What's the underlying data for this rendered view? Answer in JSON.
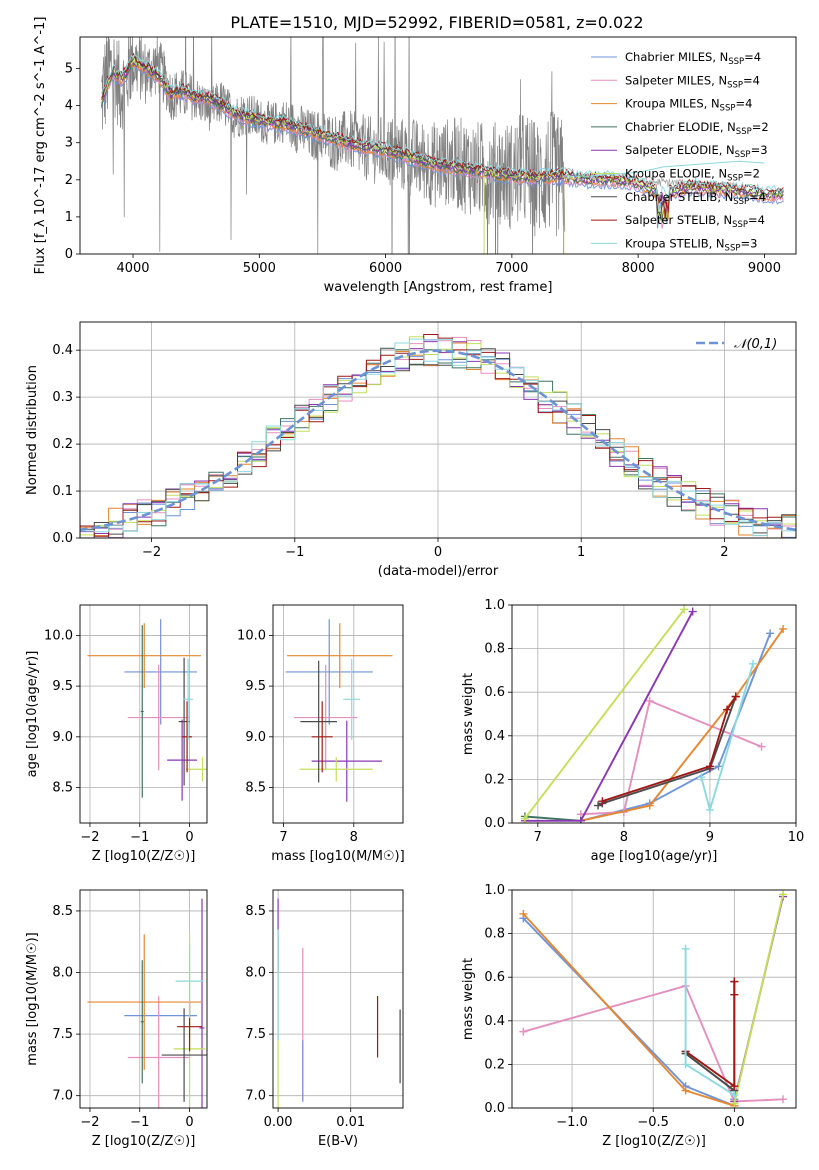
{
  "figure_title": "PLATE=1510, MJD=52992, FIBERID=0581, z=0.022",
  "model_colors": [
    "#6f94d8",
    "#e58fbf",
    "#e6862f",
    "#3e7560",
    "#8b37b5",
    "#c4df5a",
    "#4b4b4b",
    "#a01815",
    "#8bd9de"
  ],
  "chart_data": [
    {
      "id": "spectrum",
      "type": "line",
      "title": "PLATE=1510, MJD=52992, FIBERID=0581, z=0.022",
      "xlabel": "wavelength [Angstrom, rest frame]",
      "ylabel": "Flux [f_λ 10^-17 erg cm^-2 s^-1 A^-1]",
      "xlim": [
        3580,
        9250
      ],
      "ylim": [
        0,
        5.85
      ],
      "xticks": [
        4000,
        5000,
        6000,
        7000,
        8000,
        9000
      ],
      "yticks": [
        0,
        1,
        2,
        3,
        4,
        5
      ],
      "grid": false,
      "legend_position": "top-right",
      "legend": [
        {
          "prefix": "Chabrier MILES, N",
          "sub": "SSP",
          "suffix": "=4",
          "color": "#6f94d8"
        },
        {
          "prefix": "Salpeter MILES, N",
          "sub": "SSP",
          "suffix": "=4",
          "color": "#e58fbf"
        },
        {
          "prefix": "Kroupa MILES, N",
          "sub": "SSP",
          "suffix": "=4",
          "color": "#e6862f"
        },
        {
          "prefix": "Chabrier ELODIE, N",
          "sub": "SSP",
          "suffix": "=2",
          "color": "#3e7560"
        },
        {
          "prefix": "Salpeter ELODIE, N",
          "sub": "SSP",
          "suffix": "=3",
          "color": "#8b37b5"
        },
        {
          "prefix": "Kroupa ELODIE, N",
          "sub": "SSP",
          "suffix": "=2",
          "color": "#c4df5a"
        },
        {
          "prefix": "Chabrier STELIB, N",
          "sub": "SSP",
          "suffix": "=4",
          "color": "#4b4b4b"
        },
        {
          "prefix": "Salpeter STELIB, N",
          "sub": "SSP",
          "suffix": "=4",
          "color": "#a01815"
        },
        {
          "prefix": "Kroupa STELIB, N",
          "sub": "SSP",
          "suffix": "=3",
          "color": "#8bd9de"
        }
      ],
      "data_series": {
        "name": "data",
        "color": "#808080",
        "x": [
          3750,
          3800,
          3850,
          3900,
          3950,
          4000,
          4100,
          4200,
          4300,
          4400,
          4500,
          4600,
          4700,
          4800,
          4900,
          5000,
          5100,
          5200,
          5300,
          5400,
          5500,
          5600,
          5700,
          5800,
          5900,
          6000,
          6100,
          6200,
          6300,
          6400,
          6500,
          6600,
          6700,
          6800,
          6900,
          7000,
          7100,
          7200,
          7300,
          7400
        ],
        "y": [
          4.2,
          4.9,
          5.0,
          4.4,
          4.7,
          5.2,
          4.9,
          5.1,
          4.3,
          4.3,
          4.2,
          3.9,
          4.1,
          3.7,
          3.8,
          3.6,
          3.5,
          3.6,
          3.4,
          3.2,
          3.2,
          3.0,
          3.1,
          2.9,
          2.8,
          2.8,
          2.7,
          2.6,
          2.5,
          2.4,
          2.5,
          2.4,
          2.3,
          2.2,
          2.2,
          2.1,
          2.3,
          2.0,
          2.2,
          2.0
        ],
        "scatter_amplitude": [
          1.5,
          1.4,
          1.3,
          1.2,
          1.1,
          1.0,
          0.9,
          0.8,
          0.7,
          0.7,
          0.6,
          0.6,
          0.6,
          0.6,
          0.6,
          0.6,
          0.6,
          0.6,
          0.7,
          0.7,
          0.7,
          0.8,
          0.8,
          0.9,
          0.9,
          1.0,
          1.0,
          1.1,
          1.1,
          1.2,
          1.2,
          1.3,
          1.3,
          1.4,
          1.4,
          1.5,
          1.6,
          1.6,
          1.7,
          1.7
        ]
      },
      "model_series": {
        "name": "Salpeter STELIB",
        "color": "#a01815",
        "x": [
          3750,
          3800,
          3850,
          3900,
          3950,
          4000,
          4050,
          4100,
          4200,
          4300,
          4400,
          4500,
          4600,
          4700,
          4800,
          4900,
          5000,
          5200,
          5400,
          5600,
          5800,
          6000,
          6200,
          6400,
          6600,
          6800,
          7000,
          7200,
          7400,
          7600,
          7800,
          8000,
          8200,
          8400,
          8600,
          8800,
          9000
        ],
        "y": [
          4.1,
          4.6,
          4.9,
          4.7,
          4.9,
          5.2,
          5.1,
          5.0,
          4.8,
          4.3,
          4.4,
          4.2,
          4.2,
          4.0,
          3.8,
          3.7,
          3.6,
          3.5,
          3.3,
          3.1,
          2.9,
          2.8,
          2.6,
          2.4,
          2.3,
          2.2,
          2.1,
          2.05,
          2.1,
          2.0,
          2.0,
          1.9,
          1.6,
          1.8,
          1.75,
          1.7,
          1.6
        ]
      },
      "kroupa_stelib_red": {
        "name": "Kroupa STELIB",
        "color": "#8bd9de",
        "x": [
          7400,
          7600,
          7800,
          8000,
          8200,
          8400,
          8600,
          8800,
          9000
        ],
        "y": [
          2.1,
          2.1,
          2.15,
          2.2,
          2.35,
          2.4,
          2.45,
          2.5,
          2.45
        ]
      }
    },
    {
      "id": "residuals",
      "type": "histogram",
      "xlabel": "(data-model)/error",
      "ylabel": "Normed distribution",
      "xlim": [
        -2.5,
        2.5
      ],
      "ylim": [
        0,
        0.46
      ],
      "xticks": [
        -2,
        -1,
        0,
        1,
        2
      ],
      "yticks": [
        0.0,
        0.1,
        0.2,
        0.3,
        0.4
      ],
      "grid": true,
      "legend_position": "top-right",
      "reference_curve": {
        "name": "𝒩(0,1)",
        "color": "#6b93d6",
        "style": "dashed"
      },
      "bin_width": 0.1
    },
    {
      "id": "z-vs-age",
      "type": "errorbar",
      "xlabel": "Z [log10(Z/Z☉)]",
      "ylabel": "age  [log10(age/yr)]",
      "xlim": [
        -2.2,
        0.35
      ],
      "ylim": [
        8.15,
        10.3
      ],
      "xticks": [
        -2,
        -1,
        0
      ],
      "yticks": [
        8.5,
        9.0,
        9.5,
        10.0
      ],
      "grid": true,
      "points": [
        {
          "x": -0.58,
          "y": 9.64,
          "xerr": 0.73,
          "yerr": 0.52,
          "color": "#6f94d8"
        },
        {
          "x": -0.62,
          "y": 9.19,
          "xerr": 0.62,
          "yerr": 0.52,
          "color": "#e58fbf"
        },
        {
          "x": -0.91,
          "y": 9.8,
          "xerr": 1.14,
          "yerr": 0.32,
          "color": "#e6862f"
        },
        {
          "x": -0.15,
          "y": 8.77,
          "xerr": 0.3,
          "yerr": 0.4,
          "color": "#8b37b5"
        },
        {
          "x": 0.26,
          "y": 8.68,
          "xerr": 0.33,
          "yerr": 0.12,
          "color": "#c4df5a"
        },
        {
          "x": -0.11,
          "y": 9.15,
          "xerr": 0.11,
          "yerr": 0.63,
          "color": "#4b4b4b"
        },
        {
          "x": -0.05,
          "y": 9.0,
          "xerr": 0.1,
          "yerr": 0.35,
          "color": "#a01815"
        },
        {
          "x": -0.03,
          "y": 9.37,
          "xerr": 0.1,
          "yerr": 0.4,
          "color": "#8bd9de"
        },
        {
          "x": -0.95,
          "y": 9.25,
          "xerr": 0.03,
          "yerr": 0.85,
          "color": "#3e7560"
        }
      ]
    },
    {
      "id": "mass-vs-age",
      "type": "errorbar",
      "xlabel": "mass [log10(M/M☉)]",
      "ylabel": "",
      "xlim": [
        6.85,
        8.7
      ],
      "ylim": [
        8.15,
        10.3
      ],
      "xticks": [
        7,
        8
      ],
      "yticks": [
        8.5,
        9.0,
        9.5,
        10.0
      ],
      "grid": true,
      "points": [
        {
          "x": 7.65,
          "y": 9.64,
          "xerr": 0.62,
          "yerr": 0.52,
          "color": "#6f94d8"
        },
        {
          "x": 7.6,
          "y": 9.19,
          "xerr": 0.45,
          "yerr": 0.52,
          "color": "#e58fbf"
        },
        {
          "x": 7.8,
          "y": 9.8,
          "xerr": 0.75,
          "yerr": 0.32,
          "color": "#e6862f"
        },
        {
          "x": 7.9,
          "y": 8.76,
          "xerr": 0.5,
          "yerr": 0.4,
          "color": "#8b37b5"
        },
        {
          "x": 7.75,
          "y": 8.68,
          "xerr": 0.52,
          "yerr": 0.12,
          "color": "#c4df5a"
        },
        {
          "x": 7.5,
          "y": 9.15,
          "xerr": 0.26,
          "yerr": 0.6,
          "color": "#4b4b4b"
        },
        {
          "x": 7.55,
          "y": 9.0,
          "xerr": 0.15,
          "yerr": 0.35,
          "color": "#a01815"
        },
        {
          "x": 7.97,
          "y": 9.37,
          "xerr": 0.12,
          "yerr": 0.4,
          "color": "#8bd9de"
        }
      ]
    },
    {
      "id": "age-vs-massweight",
      "type": "line-markers",
      "xlabel": "age  [log10(age/yr)]",
      "ylabel": "mass weight",
      "xlim": [
        6.7,
        10.0
      ],
      "ylim": [
        0,
        1.0
      ],
      "xticks": [
        7,
        8,
        9,
        10
      ],
      "yticks": [
        0.0,
        0.2,
        0.4,
        0.6,
        0.8,
        1.0
      ],
      "grid": true,
      "series": [
        {
          "color": "#6f94d8",
          "x": [
            7.5,
            8.3,
            9.1,
            9.7
          ],
          "y": [
            0.01,
            0.09,
            0.26,
            0.87
          ]
        },
        {
          "color": "#e58fbf",
          "x": [
            7.5,
            8.0,
            8.3,
            9.6
          ],
          "y": [
            0.04,
            0.05,
            0.56,
            0.35
          ]
        },
        {
          "color": "#e6862f",
          "x": [
            7.5,
            8.3,
            9.3,
            9.85
          ],
          "y": [
            0.01,
            0.08,
            0.58,
            0.89
          ]
        },
        {
          "color": "#3e7560",
          "x": [
            6.85,
            7.5
          ],
          "y": [
            0.03,
            0.01
          ]
        },
        {
          "color": "#8b37b5",
          "x": [
            6.85,
            7.5,
            8.8
          ],
          "y": [
            0.01,
            0.01,
            0.97
          ]
        },
        {
          "color": "#c4df5a",
          "x": [
            6.85,
            8.7
          ],
          "y": [
            0.02,
            0.98
          ]
        },
        {
          "color": "#4b4b4b",
          "x": [
            7.7,
            7.75,
            9.0,
            9.3
          ],
          "y": [
            0.08,
            0.09,
            0.25,
            0.58
          ]
        },
        {
          "color": "#a01815",
          "x": [
            7.75,
            9.0,
            9.2,
            9.3
          ],
          "y": [
            0.1,
            0.26,
            0.52,
            0.58
          ]
        },
        {
          "color": "#8bd9de",
          "x": [
            8.9,
            9.0,
            9.5
          ],
          "y": [
            0.21,
            0.06,
            0.73
          ]
        }
      ]
    },
    {
      "id": "z-vs-mass",
      "type": "errorbar",
      "xlabel": "Z [log10(Z/Z☉)]",
      "ylabel": "mass [log10(M/M☉)]",
      "xlim": [
        -2.2,
        0.35
      ],
      "ylim": [
        6.9,
        8.67
      ],
      "xticks": [
        -2,
        -1,
        0
      ],
      "yticks": [
        7.0,
        7.5,
        8.0,
        8.5
      ],
      "grid": true,
      "points": [
        {
          "x": -0.58,
          "y": 7.65,
          "xerr": 0.73,
          "yerr": 0.0,
          "color": "#6f94d8"
        },
        {
          "x": -0.62,
          "y": 7.31,
          "xerr": 0.62,
          "yerr": 0.5,
          "color": "#e58fbf"
        },
        {
          "x": -0.91,
          "y": 7.76,
          "xerr": 1.14,
          "yerr": 0.55,
          "color": "#e6862f"
        },
        {
          "x": 0.25,
          "y": 7.55,
          "xerr": 0.05,
          "yerr": 1.05,
          "color": "#8b37b5"
        },
        {
          "x": 0.0,
          "y": 7.38,
          "xerr": 0.32,
          "yerr": 0.95,
          "color": "#c4df5a"
        },
        {
          "x": -0.11,
          "y": 7.33,
          "xerr": 0.45,
          "yerr": 0.38,
          "color": "#4b4b4b"
        },
        {
          "x": 0.0,
          "y": 7.56,
          "xerr": 0.25,
          "yerr": 0.2,
          "color": "#a01815"
        },
        {
          "x": 0.0,
          "y": 7.93,
          "xerr": 0.28,
          "yerr": 0.3,
          "color": "#8bd9de"
        },
        {
          "x": -0.95,
          "y": 7.6,
          "xerr": 0.03,
          "yerr": 0.5,
          "color": "#3e7560"
        }
      ]
    },
    {
      "id": "ebv-vs-mass",
      "type": "errorbar",
      "xlabel": "E(B-V)",
      "ylabel": "",
      "xlim": [
        -0.0007,
        0.0172
      ],
      "ylim": [
        6.9,
        8.67
      ],
      "xticks": [
        0.0,
        0.01
      ],
      "xtick_labels": [
        "0.00",
        "0.01"
      ],
      "yticks": [
        7.0,
        7.5,
        8.0,
        8.5
      ],
      "grid": true,
      "points": [
        {
          "x": 0.0,
          "y": 7.6,
          "xerr": 0.0,
          "yerr": 0.7,
          "color": "#c4df5a"
        },
        {
          "x": 0.0,
          "y": 8.3,
          "xerr": 0.0,
          "yerr": 0.3,
          "color": "#8b37b5"
        },
        {
          "x": 0.0,
          "y": 7.9,
          "xerr": 0.0,
          "yerr": 0.45,
          "color": "#8bd9de"
        },
        {
          "x": 0.0034,
          "y": 7.58,
          "xerr": 0.0,
          "yerr": 0.62,
          "color": "#e58fbf"
        },
        {
          "x": 0.0034,
          "y": 7.2,
          "xerr": 0.0,
          "yerr": 0.25,
          "color": "#6f94d8"
        },
        {
          "x": 0.0137,
          "y": 7.56,
          "xerr": 0.0,
          "yerr": 0.25,
          "color": "#a01815"
        },
        {
          "x": 0.0168,
          "y": 7.4,
          "xerr": 0.0,
          "yerr": 0.3,
          "color": "#4b4b4b"
        }
      ]
    },
    {
      "id": "z-vs-massweight",
      "type": "line-markers",
      "xlabel": "Z [log10(Z/Z☉)]",
      "ylabel": "mass weight",
      "xlim": [
        -1.37,
        0.38
      ],
      "ylim": [
        0,
        1.0
      ],
      "xticks": [
        -1.0,
        -0.5,
        0.0
      ],
      "xtick_labels": [
        "−1.0",
        "−0.5",
        "0.0"
      ],
      "yticks": [
        0.0,
        0.2,
        0.4,
        0.6,
        0.8,
        1.0
      ],
      "grid": true,
      "series": [
        {
          "color": "#6f94d8",
          "x": [
            -1.3,
            -0.3,
            0.0,
            0.0
          ],
          "y": [
            0.87,
            0.1,
            0.01,
            0.04
          ]
        },
        {
          "color": "#e58fbf",
          "x": [
            -1.3,
            -0.3,
            0.0,
            0.3
          ],
          "y": [
            0.35,
            0.56,
            0.03,
            0.04
          ]
        },
        {
          "color": "#e6862f",
          "x": [
            -1.3,
            -0.3,
            0.0,
            0.0
          ],
          "y": [
            0.89,
            0.08,
            0.01,
            0.03
          ]
        },
        {
          "color": "#3e7560",
          "x": [
            -0.3,
            0.0
          ],
          "y": [
            0.25,
            0.08
          ]
        },
        {
          "color": "#8b37b5",
          "x": [
            0.0,
            0.3
          ],
          "y": [
            0.03,
            0.97
          ]
        },
        {
          "color": "#c4df5a",
          "x": [
            0.0,
            0.3
          ],
          "y": [
            0.02,
            0.98
          ]
        },
        {
          "color": "#4b4b4b",
          "x": [
            -0.3,
            0.0,
            0.0
          ],
          "y": [
            0.25,
            0.08,
            0.58
          ]
        },
        {
          "color": "#a01815",
          "x": [
            -0.3,
            0.0,
            0.0,
            0.0
          ],
          "y": [
            0.26,
            0.1,
            0.52,
            0.58
          ]
        },
        {
          "color": "#8bd9de",
          "x": [
            -0.3,
            -0.3,
            0.0
          ],
          "y": [
            0.73,
            0.2,
            0.06
          ]
        }
      ]
    }
  ]
}
